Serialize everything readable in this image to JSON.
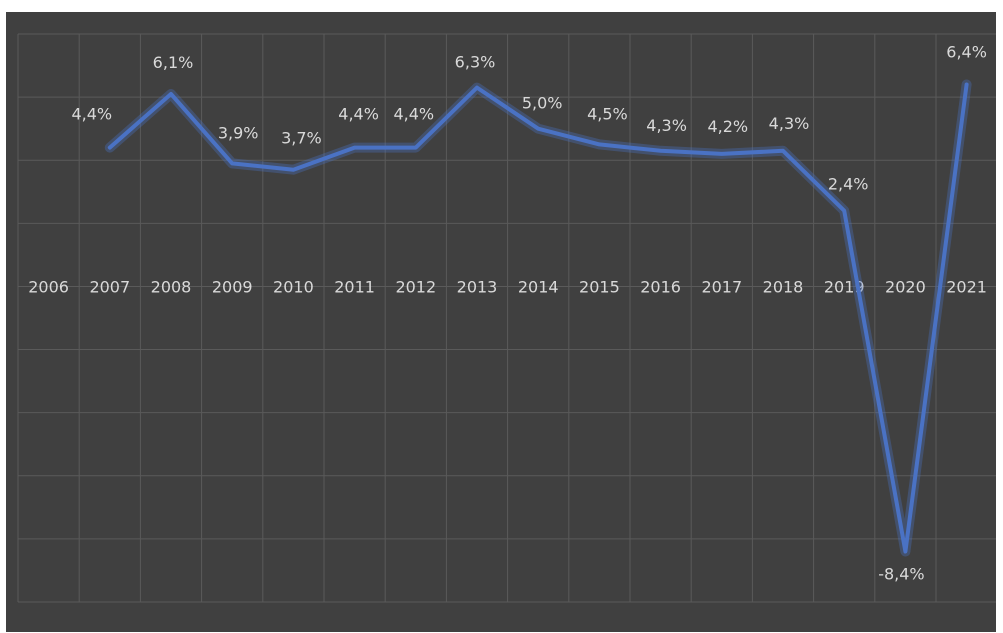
{
  "chart_data": {
    "type": "line",
    "title": "",
    "xlabel": "",
    "ylabel": "",
    "grid": true,
    "legend": "none",
    "categories": [
      "2006",
      "2007",
      "2008",
      "2009",
      "2010",
      "2011",
      "2012",
      "2013",
      "2014",
      "2015",
      "2016",
      "2017",
      "2018",
      "2019",
      "2020",
      "2021"
    ],
    "ylim": [
      -10,
      8
    ],
    "series": [
      {
        "values": [
          null,
          4.4,
          6.1,
          3.9,
          3.7,
          4.4,
          4.4,
          6.3,
          5.0,
          4.5,
          4.3,
          4.2,
          4.3,
          2.4,
          -8.4,
          6.4
        ],
        "labels": [
          "",
          "4,4%",
          "6,1%",
          "3,9%",
          "3,7%",
          "4,4%",
          "4,4%",
          "6,3%",
          "5,0%",
          "4,5%",
          "4,3%",
          "4,2%",
          "4,3%",
          "2,4%",
          "-8,4%",
          "6,4%"
        ]
      }
    ],
    "colors": {
      "background": "#404040",
      "grid": "#5a5a5a",
      "line": "#4a72c4",
      "text": "#d9d9d9"
    }
  }
}
